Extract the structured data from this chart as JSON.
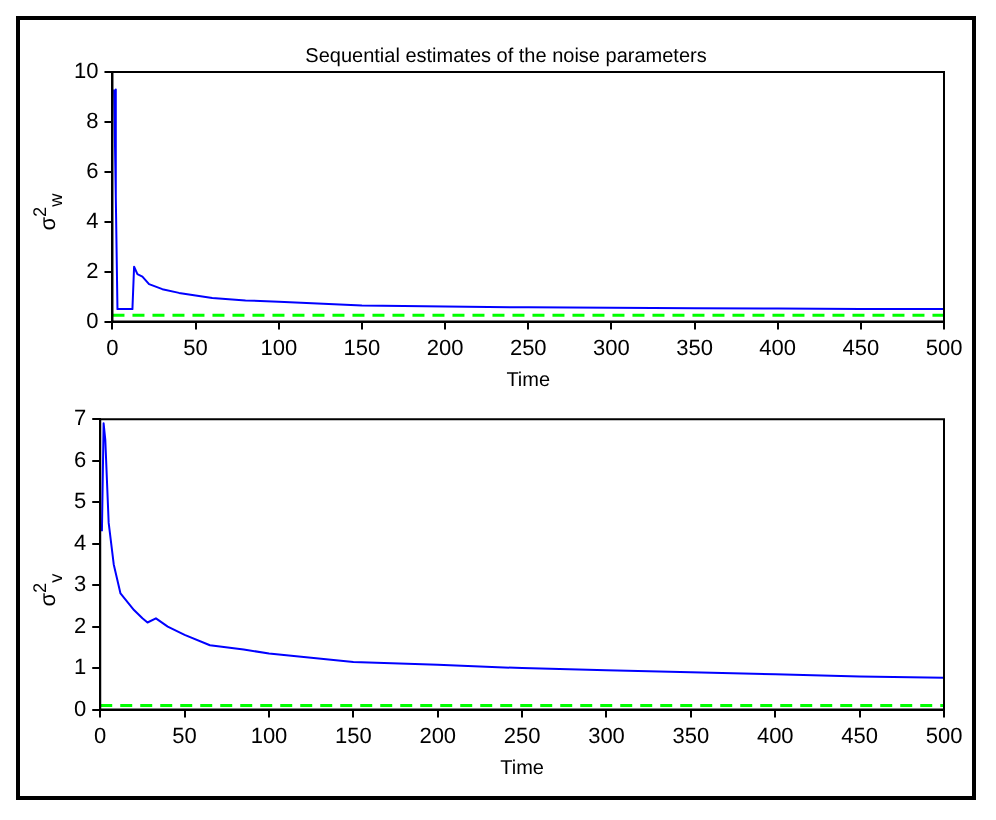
{
  "chart_data": [
    {
      "type": "line",
      "title": "Sequential estimates of the noise parameters",
      "xlabel": "Time",
      "ylabel": "σ$^{2}$$_{w}$",
      "x": [
        1,
        2,
        3,
        5,
        8,
        12,
        13,
        15,
        18,
        22,
        30,
        40,
        50,
        60,
        80,
        100,
        150,
        200,
        250,
        300,
        350,
        400,
        450,
        500
      ],
      "series": [
        {
          "color": "#0000ff",
          "values": [
            9.3,
            5,
            0.5,
            0.5,
            0.5,
            0.5,
            2.2,
            1.9,
            1.8,
            1.5,
            1.3,
            1.15,
            1.05,
            0.95,
            0.85,
            0.8,
            0.65,
            0.6,
            0.57,
            0.55,
            0.53,
            0.52,
            0.5,
            0.5
          ]
        }
      ],
      "xlim": [
        0,
        500
      ],
      "xticks": [
        0,
        50,
        100,
        150,
        200,
        250,
        300,
        350,
        400,
        450,
        500
      ],
      "ylim": [
        0,
        10
      ],
      "yticks": [
        0,
        2,
        4,
        6,
        8,
        10
      ],
      "grid": false,
      "legend": false,
      "marker": "none",
      "line_style": "solid",
      "ref_lines": [
        {
          "axis": "y",
          "value": 0.25,
          "color": "#00ff00",
          "line_style": "dashed"
        }
      ]
    },
    {
      "type": "line",
      "xlabel": "Time",
      "ylabel": "σ$^{2}$$_{v}$",
      "x": [
        1,
        2,
        3,
        5,
        8,
        12,
        20,
        25,
        28,
        33,
        40,
        50,
        65,
        85,
        100,
        150,
        200,
        250,
        300,
        350,
        400,
        450,
        500
      ],
      "series": [
        {
          "color": "#0000ff",
          "values": [
            4.3,
            6.9,
            6.5,
            4.5,
            3.5,
            2.8,
            2.4,
            2.2,
            2.1,
            2.2,
            2.0,
            1.8,
            1.55,
            1.45,
            1.35,
            1.15,
            1.08,
            1.0,
            0.95,
            0.9,
            0.85,
            0.8,
            0.77
          ]
        }
      ],
      "xlim": [
        0,
        500
      ],
      "xticks": [
        0,
        50,
        100,
        150,
        200,
        250,
        300,
        350,
        400,
        450,
        500
      ],
      "ylim": [
        0,
        7
      ],
      "yticks": [
        0,
        1,
        2,
        3,
        4,
        5,
        6,
        7
      ],
      "grid": false,
      "legend": false,
      "marker": "none",
      "line_style": "solid",
      "ref_lines": [
        {
          "axis": "y",
          "value": 0.1,
          "color": "#00ff00",
          "line_style": "dashed"
        }
      ]
    }
  ]
}
